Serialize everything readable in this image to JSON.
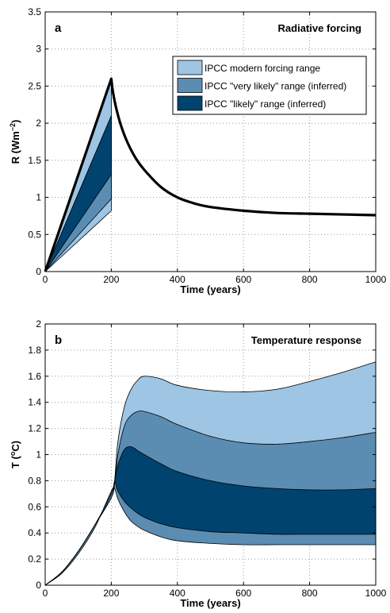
{
  "chart_data": [
    {
      "panel": "a",
      "type": "area",
      "title": "Radiative forcing",
      "xlabel": "Time (years)",
      "ylabel_main": "R (Wm",
      "ylabel_sup": "−2",
      "ylabel_end": ")",
      "xlim": [
        0,
        1000
      ],
      "ylim": [
        0,
        3.5
      ],
      "xticks": [
        0,
        200,
        400,
        600,
        800,
        1000
      ],
      "yticks": [
        0,
        0.5,
        1,
        1.5,
        2,
        2.5,
        3,
        3.5
      ],
      "grid": true,
      "legend_position": "top-right",
      "bands": [
        {
          "name": "IPCC modern forcing range",
          "color": "#9ec5e3",
          "x": [
            0,
            200
          ],
          "lower": [
            0,
            0.82
          ],
          "upper": [
            0,
            2.6
          ]
        },
        {
          "name": "IPCC \"very likely\" range (inferred)",
          "color": "#5b8db3",
          "x": [
            0,
            200
          ],
          "lower": [
            0,
            0.98
          ],
          "upper": [
            0,
            2.1
          ]
        },
        {
          "name": "IPCC \"likely\" range (inferred)",
          "color": "#00436f",
          "x": [
            0,
            200
          ],
          "lower": [
            0,
            1.31
          ],
          "upper": [
            0,
            2.1
          ]
        }
      ],
      "line": {
        "color": "#000000",
        "x": [
          0,
          200,
          205,
          215,
          230,
          250,
          275,
          300,
          350,
          400,
          450,
          500,
          600,
          700,
          800,
          900,
          1000
        ],
        "y": [
          0,
          2.6,
          2.42,
          2.2,
          1.96,
          1.73,
          1.52,
          1.37,
          1.14,
          1.0,
          0.92,
          0.87,
          0.82,
          0.79,
          0.78,
          0.77,
          0.76
        ]
      }
    },
    {
      "panel": "b",
      "type": "area",
      "title": "Temperature response",
      "xlabel": "Time (years)",
      "ylabel_main": "T (",
      "ylabel_sup": "o",
      "ylabel_end": "C)",
      "xlim": [
        0,
        1000
      ],
      "ylim": [
        0,
        2
      ],
      "xticks": [
        0,
        200,
        400,
        600,
        800,
        1000
      ],
      "yticks": [
        0,
        0.2,
        0.4,
        0.6,
        0.8,
        1,
        1.2,
        1.4,
        1.6,
        1.8,
        2
      ],
      "grid": true,
      "bands": [
        {
          "name": "IPCC modern forcing range",
          "color": "#9ec5e3",
          "x": [
            0,
            50,
            100,
            150,
            200,
            210,
            220,
            240,
            260,
            280,
            300,
            350,
            400,
            500,
            600,
            700,
            800,
            900,
            1000
          ],
          "lower": [
            0,
            0.1,
            0.26,
            0.46,
            0.67,
            0.8,
            1.1,
            1.37,
            1.5,
            1.57,
            1.6,
            1.58,
            1.53,
            1.49,
            1.48,
            1.5,
            1.56,
            1.63,
            1.71
          ],
          "upper": [
            0,
            0.1,
            0.26,
            0.46,
            0.67,
            0.8,
            1.1,
            1.37,
            1.5,
            1.57,
            1.6,
            1.58,
            1.53,
            1.49,
            1.48,
            1.5,
            1.56,
            1.63,
            1.71
          ]
        },
        {
          "name": "IPCC \"very likely\" range (inferred)",
          "color": "#5b8db3",
          "x": [
            0,
            50,
            100,
            150,
            200,
            210,
            220,
            240,
            260,
            280,
            300,
            350,
            400,
            500,
            600,
            700,
            800,
            900,
            1000
          ],
          "lower": [
            0,
            0.1,
            0.26,
            0.46,
            0.67,
            0.78,
            1.0,
            1.22,
            1.3,
            1.33,
            1.33,
            1.29,
            1.23,
            1.14,
            1.09,
            1.08,
            1.1,
            1.13,
            1.17
          ],
          "upper": [
            0,
            0.1,
            0.26,
            0.46,
            0.67,
            0.78,
            1.0,
            1.22,
            1.3,
            1.33,
            1.33,
            1.29,
            1.23,
            1.14,
            1.09,
            1.08,
            1.1,
            1.13,
            1.17
          ]
        },
        {
          "name": "IPCC \"likely\" range (inferred)",
          "color": "#00436f",
          "x": [
            0,
            50,
            100,
            150,
            200,
            210,
            220,
            240,
            260,
            280,
            300,
            350,
            400,
            500,
            600,
            700,
            800,
            900,
            1000
          ],
          "lower": [
            0,
            0.1,
            0.26,
            0.46,
            0.7,
            0.79,
            0.72,
            0.64,
            0.59,
            0.55,
            0.52,
            0.47,
            0.44,
            0.41,
            0.4,
            0.39,
            0.39,
            0.39,
            0.39
          ],
          "upper": [
            0,
            0.1,
            0.26,
            0.46,
            0.7,
            0.8,
            0.92,
            1.04,
            1.06,
            1.03,
            1.0,
            0.93,
            0.87,
            0.8,
            0.76,
            0.74,
            0.73,
            0.73,
            0.74
          ]
        }
      ],
      "outer_lower": {
        "x": [
          0,
          50,
          100,
          150,
          200,
          210,
          220,
          240,
          260,
          280,
          300,
          350,
          400,
          500,
          600,
          700,
          800,
          900,
          1000
        ],
        "y": [
          0,
          0.09,
          0.24,
          0.44,
          0.72,
          0.74,
          0.66,
          0.56,
          0.49,
          0.45,
          0.42,
          0.37,
          0.34,
          0.32,
          0.31,
          0.31,
          0.31,
          0.31,
          0.31
        ]
      }
    }
  ],
  "legend": {
    "entries": [
      {
        "label": "IPCC modern forcing range",
        "color": "#9ec5e3"
      },
      {
        "label": "IPCC \"very likely\" range (inferred)",
        "color": "#5b8db3"
      },
      {
        "label": "IPCC \"likely\" range (inferred)",
        "color": "#00436f"
      }
    ]
  }
}
